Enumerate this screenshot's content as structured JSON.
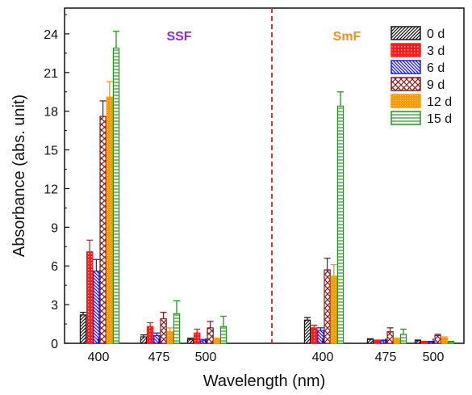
{
  "chart_data": {
    "type": "bar",
    "xlabel": "Wavelength (nm)",
    "ylabel": "Absorbance (abs. unit)",
    "ylim": [
      0,
      26
    ],
    "yticks": [
      "0",
      "3",
      "6",
      "9",
      "12",
      "15",
      "18",
      "21",
      "24"
    ],
    "grid": false,
    "legend_position": "top-right",
    "separator_color": "#e8312a",
    "groups": [
      {
        "label": "SSF",
        "color": "#8a2be2",
        "categories": [
          "400",
          "475",
          "500"
        ],
        "series": [
          {
            "name": "0 d",
            "values": [
              2.2,
              0.5,
              0.3
            ],
            "errors": [
              0.2,
              0.15,
              0.1
            ]
          },
          {
            "name": "3 d",
            "values": [
              7.1,
              1.3,
              0.8
            ],
            "errors": [
              0.9,
              0.3,
              0.3
            ]
          },
          {
            "name": "6 d",
            "values": [
              5.6,
              0.6,
              0.2
            ],
            "errors": [
              0.9,
              0.2,
              0.1
            ]
          },
          {
            "name": "9 d",
            "values": [
              17.6,
              1.9,
              1.2
            ],
            "errors": [
              1.2,
              0.5,
              0.5
            ]
          },
          {
            "name": "12 d",
            "values": [
              19.1,
              0.9,
              0.3
            ],
            "errors": [
              1.2,
              0.3,
              0.1
            ]
          },
          {
            "name": "15 d",
            "values": [
              22.9,
              2.3,
              1.3
            ],
            "errors": [
              1.3,
              1.0,
              0.8
            ]
          }
        ]
      },
      {
        "label": "SmF",
        "color": "#f5901e",
        "categories": [
          "400",
          "475",
          "500"
        ],
        "series": [
          {
            "name": "0 d",
            "values": [
              1.8,
              0.3,
              0.2
            ],
            "errors": [
              0.2,
              0.05,
              0.05
            ]
          },
          {
            "name": "3 d",
            "values": [
              1.2,
              0.2,
              0.1
            ],
            "errors": [
              0.2,
              0.05,
              0.05
            ]
          },
          {
            "name": "6 d",
            "values": [
              1.0,
              0.2,
              0.1
            ],
            "errors": [
              0.2,
              0.05,
              0.05
            ]
          },
          {
            "name": "9 d",
            "values": [
              5.7,
              0.9,
              0.6
            ],
            "errors": [
              0.9,
              0.3,
              0.1
            ]
          },
          {
            "name": "12 d",
            "values": [
              5.2,
              0.3,
              0.4
            ],
            "errors": [
              0.9,
              0.1,
              0.1
            ]
          },
          {
            "name": "15 d",
            "values": [
              18.4,
              0.7,
              0.1
            ],
            "errors": [
              1.1,
              0.4,
              0.05
            ]
          }
        ]
      }
    ],
    "series_styles": [
      {
        "name": "0 d",
        "color": "#1a1a1a",
        "pattern": "diag-dense"
      },
      {
        "name": "3 d",
        "color": "#ff1a1a",
        "pattern": "dots"
      },
      {
        "name": "6 d",
        "color": "#1a1aff",
        "pattern": "diag-back"
      },
      {
        "name": "9 d",
        "color": "#8b1a1a",
        "pattern": "crosshatch"
      },
      {
        "name": "12 d",
        "color": "#ff9900",
        "pattern": "grid"
      },
      {
        "name": "15 d",
        "color": "#1a9e1a",
        "pattern": "horizontal"
      }
    ]
  }
}
